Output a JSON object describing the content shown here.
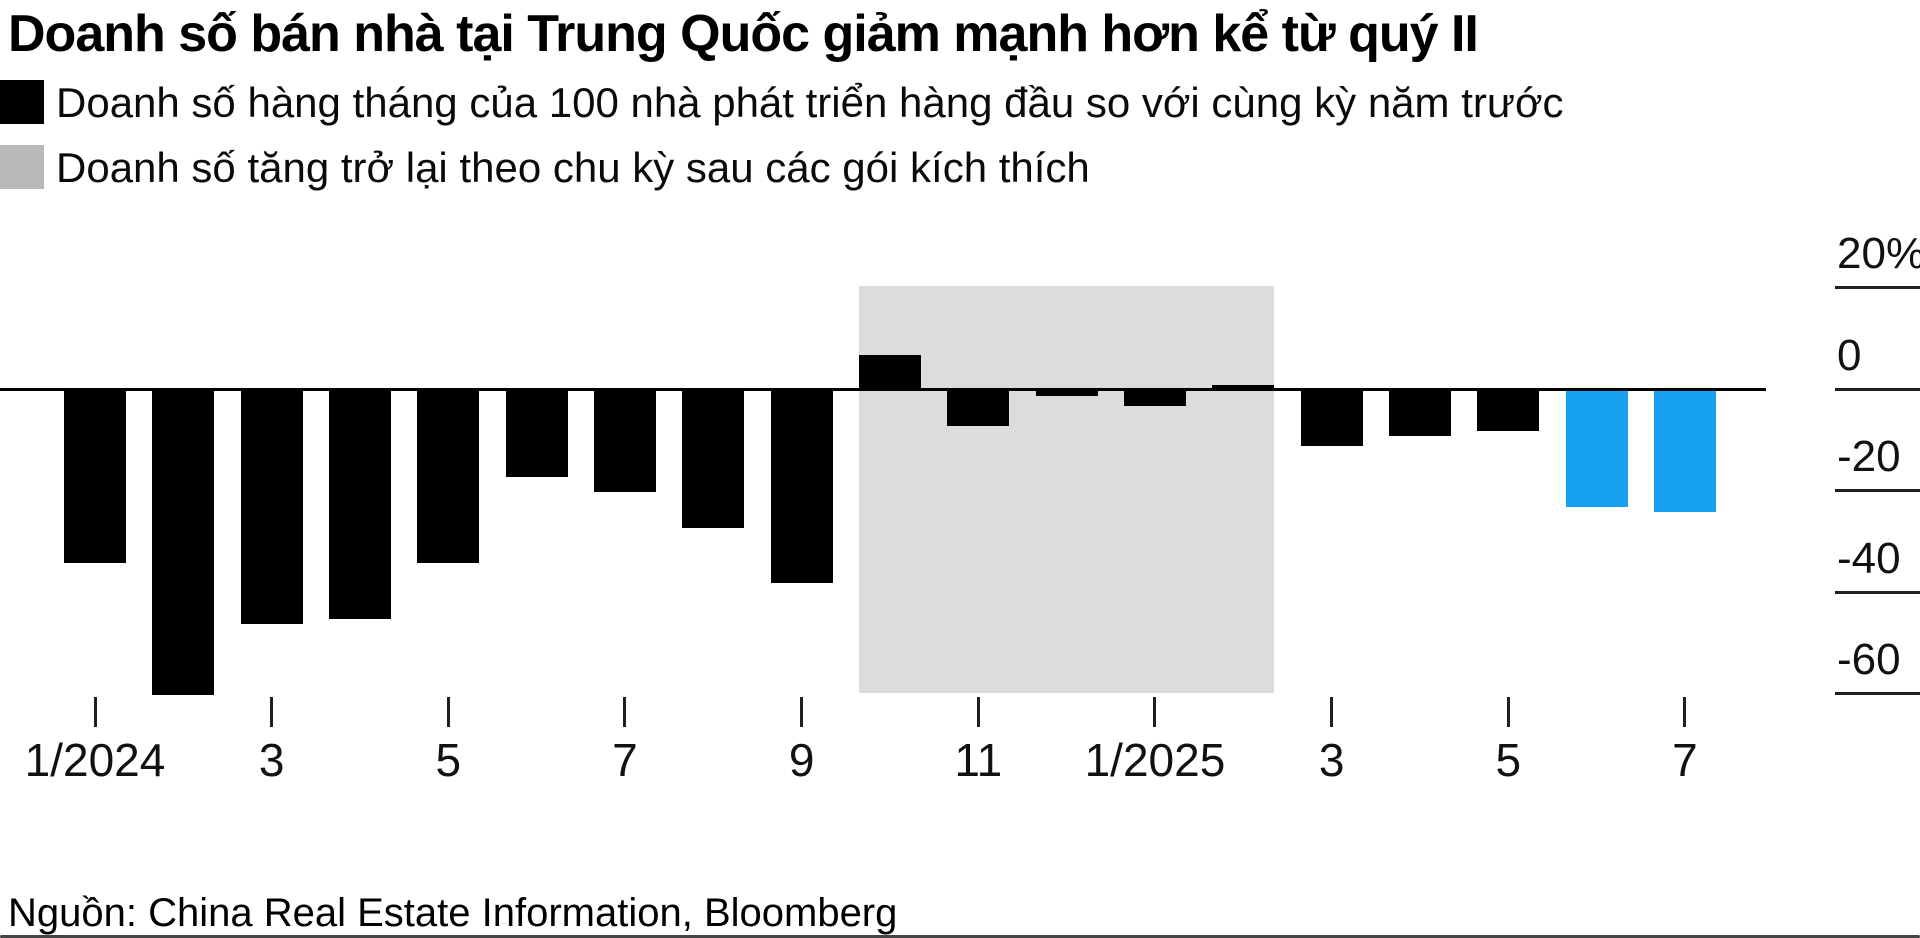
{
  "title": "Doanh số bán nhà tại Trung Quốc giảm mạnh hơn kể từ quý II",
  "legend": {
    "items": [
      {
        "label": "Doanh số hàng tháng của 100 nhà phát triển hàng đầu so với cùng kỳ năm trước",
        "swatch_color": "#000000"
      },
      {
        "label": "Doanh số tăng trở lại theo chu kỳ sau các gói kích thích",
        "swatch_color": "#b9b9b9"
      }
    ]
  },
  "source": "Nguồn: China Real Estate Information, Bloomberg",
  "colors": {
    "bar_default": "#000000",
    "bar_highlight": "#18a0f0",
    "stimulus_band": "#dcdcdc",
    "legend_gray": "#b9b9b9",
    "axis": "#000000",
    "text": "#000000"
  },
  "chart_data": {
    "type": "bar",
    "title": "Doanh số bán nhà tại Trung Quốc giảm mạnh hơn kể từ quý II",
    "unit": "%",
    "categories": [
      "1/2024",
      "2/2024",
      "3/2024",
      "4/2024",
      "5/2024",
      "6/2024",
      "7/2024",
      "8/2024",
      "9/2024",
      "10/2024",
      "11/2024",
      "12/2024",
      "1/2025",
      "2/2025",
      "3/2025",
      "4/2025",
      "5/2025",
      "6/2025",
      "7/2025"
    ],
    "values": [
      -34,
      -60,
      -46,
      -45,
      -34,
      -17,
      -20,
      -27,
      -38,
      7,
      -7,
      -1,
      -3,
      1,
      -11,
      -9,
      -8,
      -23,
      -24
    ],
    "bar_colors": [
      "default",
      "default",
      "default",
      "default",
      "default",
      "default",
      "default",
      "default",
      "default",
      "default",
      "default",
      "default",
      "default",
      "default",
      "default",
      "default",
      "default",
      "highlight",
      "highlight"
    ],
    "ylim": [
      -60,
      20
    ],
    "y_axis_side": "right",
    "grid": "right-stubs-only",
    "y_ticks": [
      {
        "value": 20,
        "label": "20%"
      },
      {
        "value": 0,
        "label": "0"
      },
      {
        "value": -20,
        "label": "-20"
      },
      {
        "value": -40,
        "label": "-40"
      },
      {
        "value": -60,
        "label": "-60"
      }
    ],
    "x_ticks": [
      {
        "index": 0,
        "label": "1/2024"
      },
      {
        "index": 2,
        "label": "3"
      },
      {
        "index": 4,
        "label": "5"
      },
      {
        "index": 6,
        "label": "7"
      },
      {
        "index": 8,
        "label": "9"
      },
      {
        "index": 10,
        "label": "11"
      },
      {
        "index": 12,
        "label": "1/2025"
      },
      {
        "index": 14,
        "label": "3"
      },
      {
        "index": 16,
        "label": "5"
      },
      {
        "index": 18,
        "label": "7"
      }
    ],
    "stimulus_band": {
      "from_category": "10/2024",
      "to_category": "2/2025",
      "from_index": 9,
      "to_index": 13,
      "description": "Doanh số tăng trở lại theo chu kỳ sau các gói kích thích"
    },
    "legend_position": "top-left"
  }
}
